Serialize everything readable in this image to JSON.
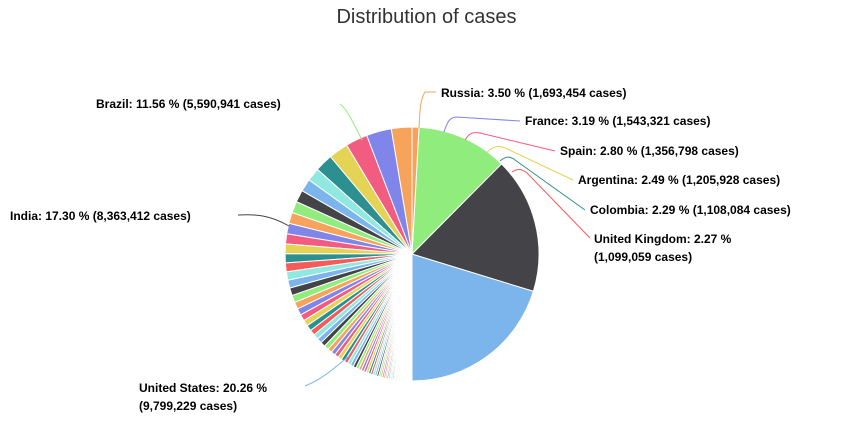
{
  "chart_data": {
    "type": "pie",
    "title": "Distribution of cases",
    "slices": [
      {
        "name": "United States",
        "percent": 20.26,
        "cases": "9,799,229",
        "label": "United States: 20.26 %",
        "label_extra": "(9,799,229 cases)",
        "color": "#7cb5ec"
      },
      {
        "name": "India",
        "percent": 17.3,
        "cases": "8,363,412",
        "label": "India: 17.30 % (8,363,412 cases)",
        "color": "#434348"
      },
      {
        "name": "Brazil",
        "percent": 11.56,
        "cases": "5,590,941",
        "label": "Brazil: 11.56 % (5,590,941 cases)",
        "color": "#90ed7d"
      },
      {
        "name": "Russia",
        "percent": 3.5,
        "cases": "1,693,454",
        "label": "Russia: 3.50 % (1,693,454 cases)",
        "color": "#f7a35c"
      },
      {
        "name": "France",
        "percent": 3.19,
        "cases": "1,543,321",
        "label": "France: 3.19 % (1,543,321 cases)",
        "color": "#8085e9"
      },
      {
        "name": "Spain",
        "percent": 2.8,
        "cases": "1,356,798",
        "label": "Spain: 2.80 % (1,356,798 cases)",
        "color": "#f15c80"
      },
      {
        "name": "Argentina",
        "percent": 2.49,
        "cases": "1,205,928",
        "label": "Argentina: 2.49 % (1,205,928 cases)",
        "color": "#e4d354"
      },
      {
        "name": "Colombia",
        "percent": 2.29,
        "cases": "1,108,084",
        "label": "Colombia: 2.29 % (1,108,084 cases)",
        "color": "#2b908f"
      },
      {
        "name": "United Kingdom",
        "percent": 2.27,
        "cases": "1,099,059",
        "label": "United Kingdom: 2.27 %",
        "label_extra": "(1,099,059 cases)",
        "color": "#f45b5b"
      }
    ],
    "other_slice_palette": [
      "#91e8e1",
      "#7cb5ec",
      "#434348",
      "#90ed7d",
      "#f7a35c",
      "#8085e9",
      "#f15c80",
      "#e4d354",
      "#2b908f",
      "#f45b5b"
    ],
    "other_small_slice_count": 80
  }
}
